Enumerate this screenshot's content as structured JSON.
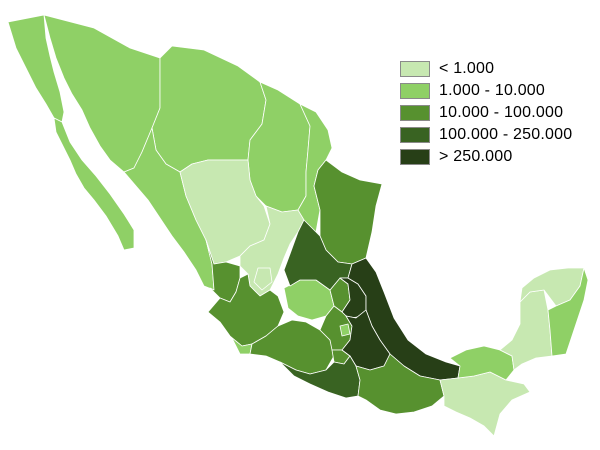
{
  "legend": {
    "classes": [
      {
        "label": "< 1.000",
        "color": "#c7e8b1"
      },
      {
        "label": "1.000 - 10.000",
        "color": "#8fd066"
      },
      {
        "label": "10.000 - 100.000",
        "color": "#57912f"
      },
      {
        "label": "100.000 - 250.000",
        "color": "#396322"
      },
      {
        "label": "> 250.000",
        "color": "#273f17"
      }
    ]
  },
  "map": {
    "country": "Mexico",
    "state_classes": {
      "baja-california": 1,
      "baja-california-sur": 1,
      "sonora": 1,
      "chihuahua": 1,
      "coahuila": 1,
      "nuevo-leon": 1,
      "tamaulipas": 2,
      "sinaloa": 1,
      "durango": 0,
      "zacatecas": 0,
      "nayarit": 2,
      "jalisco": 2,
      "colima": 1,
      "michoacan": 2,
      "aguascalientes": 0,
      "guanajuato": 1,
      "queretaro": 2,
      "san-luis-potosi": 3,
      "hidalgo": 4,
      "veracruz": 4,
      "mexico-state": 2,
      "mexico-city": 1,
      "morelos": 2,
      "tlaxcala": 3,
      "puebla": 4,
      "guerrero": 3,
      "oaxaca": 2,
      "chiapas": 0,
      "tabasco": 1,
      "campeche": 0,
      "yucatan": 0,
      "quintana-roo": 1
    }
  }
}
